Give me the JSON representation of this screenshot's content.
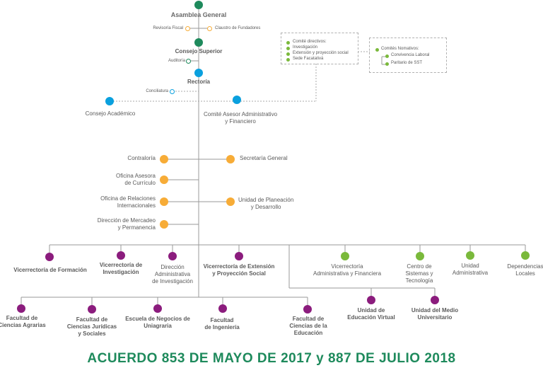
{
  "governance": {
    "asamblea": "Asamblea General",
    "revisoria": "Revisoría Fiscal",
    "claustro": "Claustro de Fundadores",
    "consejo_superior": "Consejo Superior",
    "auditoria": "Auditoría",
    "rectoria": "Rectoría",
    "conciliatura": "Conciliatura",
    "consejo_academico": "Consejo Académico",
    "comite_asesor": [
      "Comité Asesor Administrativo",
      "y Financiero"
    ]
  },
  "committees": {
    "directivos_title": "Comité directivos:",
    "directivos_items": [
      "Investigación",
      "Extensión y proyección social",
      "Sede Facatativá"
    ],
    "normativos_title": "Comités Nomativos:",
    "normativos_items": [
      "Convivencia Laboral",
      "Paritario de SST"
    ]
  },
  "offices": {
    "contraloria": "Contraloría",
    "secretaria": "Secretaría General",
    "curriculo": [
      "Oficina Asesora",
      "de Currículo"
    ],
    "relaciones": [
      "Oficina de Relaciones",
      "Internacionales"
    ],
    "planeacion": [
      "Unidad de Planeación",
      "y Desarrollo"
    ],
    "mercadeo": [
      "Dirección de Mercadeo",
      "y Permanencia"
    ]
  },
  "vicerrectorias": {
    "formacion": "Vicerrectoría de Formación",
    "investigacion": [
      "Vicerrectoría de",
      "Investigación"
    ],
    "dir_admin": [
      "Dirección",
      "Administrativa",
      "de Investigación"
    ],
    "extension": [
      "Vicerrectoría de Extensión",
      "y Proyección Social"
    ],
    "admin_fin": [
      "Vicerrectoría",
      "Administrativa y Financiera"
    ],
    "sistemas": [
      "Centro de",
      "Sistemas y",
      "Tecnología"
    ],
    "unidad_admin": [
      "Unidad",
      "Administrativa"
    ],
    "dependencias": [
      "Dependencias",
      "Locales"
    ]
  },
  "faculties": {
    "agrarias": [
      "Facultad de",
      "Ciencias Agrarias"
    ],
    "juridicas": [
      "Facultad de",
      "Ciencias Jurídicas",
      "y Sociales"
    ],
    "negocios": [
      "Escuela de Negocios de",
      "Uniagraria"
    ],
    "ingenieria": [
      "Facultad",
      "de Ingeniería"
    ],
    "educacion": [
      "Facultad de",
      "Ciencias de la",
      "Educación"
    ],
    "virtual": [
      "Unidad de",
      "Educación Virtual"
    ],
    "medio": [
      "Unidad del Medio",
      "Universitario"
    ]
  },
  "footer": "ACUERDO 853  DE  MAYO DE 2017 y 887 DE JULIO 2018",
  "colors": {
    "governance": "#1e8a5c",
    "rectoria": "#0aa0de",
    "offices": "#f7ac37",
    "academic": "#8b1c7d",
    "administrative": "#7ab93b"
  }
}
